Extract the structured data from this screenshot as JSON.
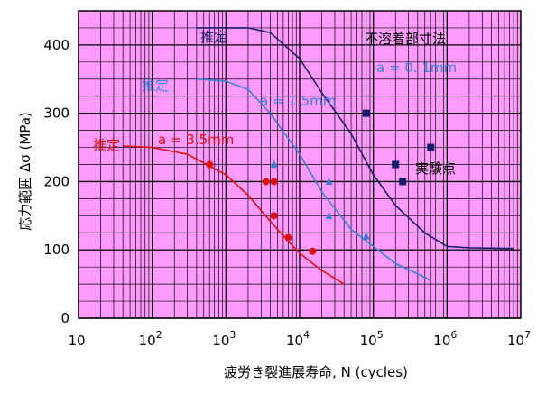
{
  "chart_data": {
    "type": "scatter",
    "xlabel": "疲労き裂進展寿命, N (cycles)",
    "ylabel": "応力範囲 Δσ (MPa)",
    "x_scale": "log",
    "xlim": [
      10,
      10000000
    ],
    "ylim": [
      0,
      450
    ],
    "grid": true,
    "x_ticks": [
      {
        "base": "10",
        "exp": ""
      },
      {
        "base": "10",
        "exp": "2"
      },
      {
        "base": "10",
        "exp": "3"
      },
      {
        "base": "10",
        "exp": "4"
      },
      {
        "base": "10",
        "exp": "5"
      },
      {
        "base": "10",
        "exp": "6"
      },
      {
        "base": "10",
        "exp": "7"
      }
    ],
    "y_ticks": [
      "0",
      "100",
      "200",
      "300",
      "400"
    ],
    "legend": {
      "title": "不溶着部寸法",
      "subtitle": "a = 0. 1mm",
      "points_label": "実験点"
    },
    "colors": {
      "plot_bg": "#ff9bff",
      "grid": "#000000"
    },
    "series": [
      {
        "name": "a = 0. 1mm",
        "color": "#1a1a6e",
        "curve_label": "推定",
        "curve": [
          [
            400,
            425
          ],
          [
            2000,
            425
          ],
          [
            4000,
            418
          ],
          [
            10000,
            380
          ],
          [
            20000,
            330
          ],
          [
            50000,
            270
          ],
          [
            100000,
            210
          ],
          [
            200000,
            165
          ],
          [
            500000,
            125
          ],
          [
            1000000,
            105
          ],
          [
            2000000,
            103
          ],
          [
            8000000,
            102
          ]
        ],
        "points": [
          [
            80000,
            300
          ],
          [
            200000,
            225
          ],
          [
            250000,
            200
          ],
          [
            600000,
            250
          ]
        ],
        "marker": "square"
      },
      {
        "name": "a = 1.5mm",
        "color": "#3b7fd6",
        "curve_label": "推定",
        "curve": [
          [
            400,
            350
          ],
          [
            1000,
            347
          ],
          [
            2000,
            335
          ],
          [
            4000,
            300
          ],
          [
            10000,
            240
          ],
          [
            20000,
            185
          ],
          [
            50000,
            130
          ],
          [
            100000,
            105
          ],
          [
            200000,
            80
          ],
          [
            500000,
            60
          ],
          [
            600000,
            55
          ]
        ],
        "points": [
          [
            4500,
            225
          ],
          [
            25000,
            200
          ],
          [
            25000,
            150
          ],
          [
            80000,
            120
          ]
        ],
        "marker": "triangle"
      },
      {
        "name": "a = 3.5mm",
        "color": "#e01010",
        "curve_label": "推定",
        "curve": [
          [
            40,
            252
          ],
          [
            100,
            250
          ],
          [
            300,
            240
          ],
          [
            1000,
            210
          ],
          [
            2000,
            180
          ],
          [
            5000,
            130
          ],
          [
            10000,
            95
          ],
          [
            20000,
            70
          ],
          [
            40000,
            50
          ]
        ],
        "points": [
          [
            600,
            225
          ],
          [
            3500,
            200
          ],
          [
            4500,
            200
          ],
          [
            4500,
            150
          ],
          [
            7000,
            118
          ],
          [
            15000,
            98
          ]
        ],
        "marker": "circle"
      }
    ]
  }
}
